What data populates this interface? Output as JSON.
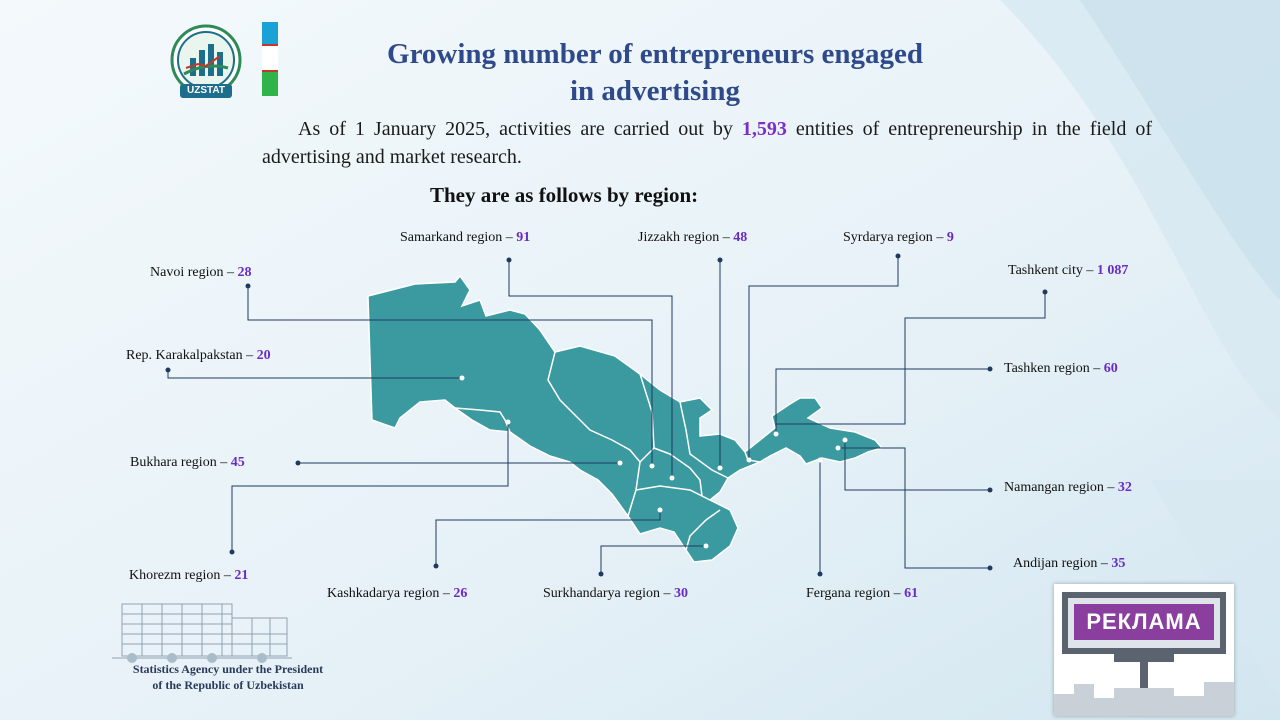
{
  "header": {
    "logo_text": "UZSTAT",
    "title_line1": "Growing number of entrepreneurs engaged",
    "title_line2": "in advertising"
  },
  "intro": {
    "prefix": "As of 1 January 2025, activities are carried out by",
    "number": "1,593",
    "suffix": "entities of entrepreneurship in the field of advertising and market research."
  },
  "subheading": "They are as follows by region:",
  "regions": [
    {
      "name": "Samarkand region",
      "value": "91"
    },
    {
      "name": "Jizzakh region",
      "value": "48"
    },
    {
      "name": "Syrdarya region",
      "value": "9"
    },
    {
      "name": "Navoi region",
      "value": "28"
    },
    {
      "name": "Tashkent city",
      "value": "1 087"
    },
    {
      "name": "Rep. Karakalpakstan",
      "value": "20"
    },
    {
      "name": "Tashken region",
      "value": "60"
    },
    {
      "name": "Bukhara region",
      "value": "45"
    },
    {
      "name": "Namangan region",
      "value": "32"
    },
    {
      "name": "Andijan region",
      "value": "35"
    },
    {
      "name": "Khorezm region",
      "value": "21"
    },
    {
      "name": "Kashkadarya region",
      "value": "26"
    },
    {
      "name": "Surkhandarya region",
      "value": "30"
    },
    {
      "name": "Fergana region",
      "value": "61"
    }
  ],
  "footer": {
    "agency_line1": "Statistics Agency under the President",
    "agency_line2": "of the Republic of Uzbekistan"
  },
  "billboard_text": "РЕКЛАМА",
  "colors": {
    "title": "#2f4a8a",
    "value_highlight": "#6a2bc2",
    "map_fill": "#3b9aa0",
    "leader_line": "#1f3a5f"
  }
}
